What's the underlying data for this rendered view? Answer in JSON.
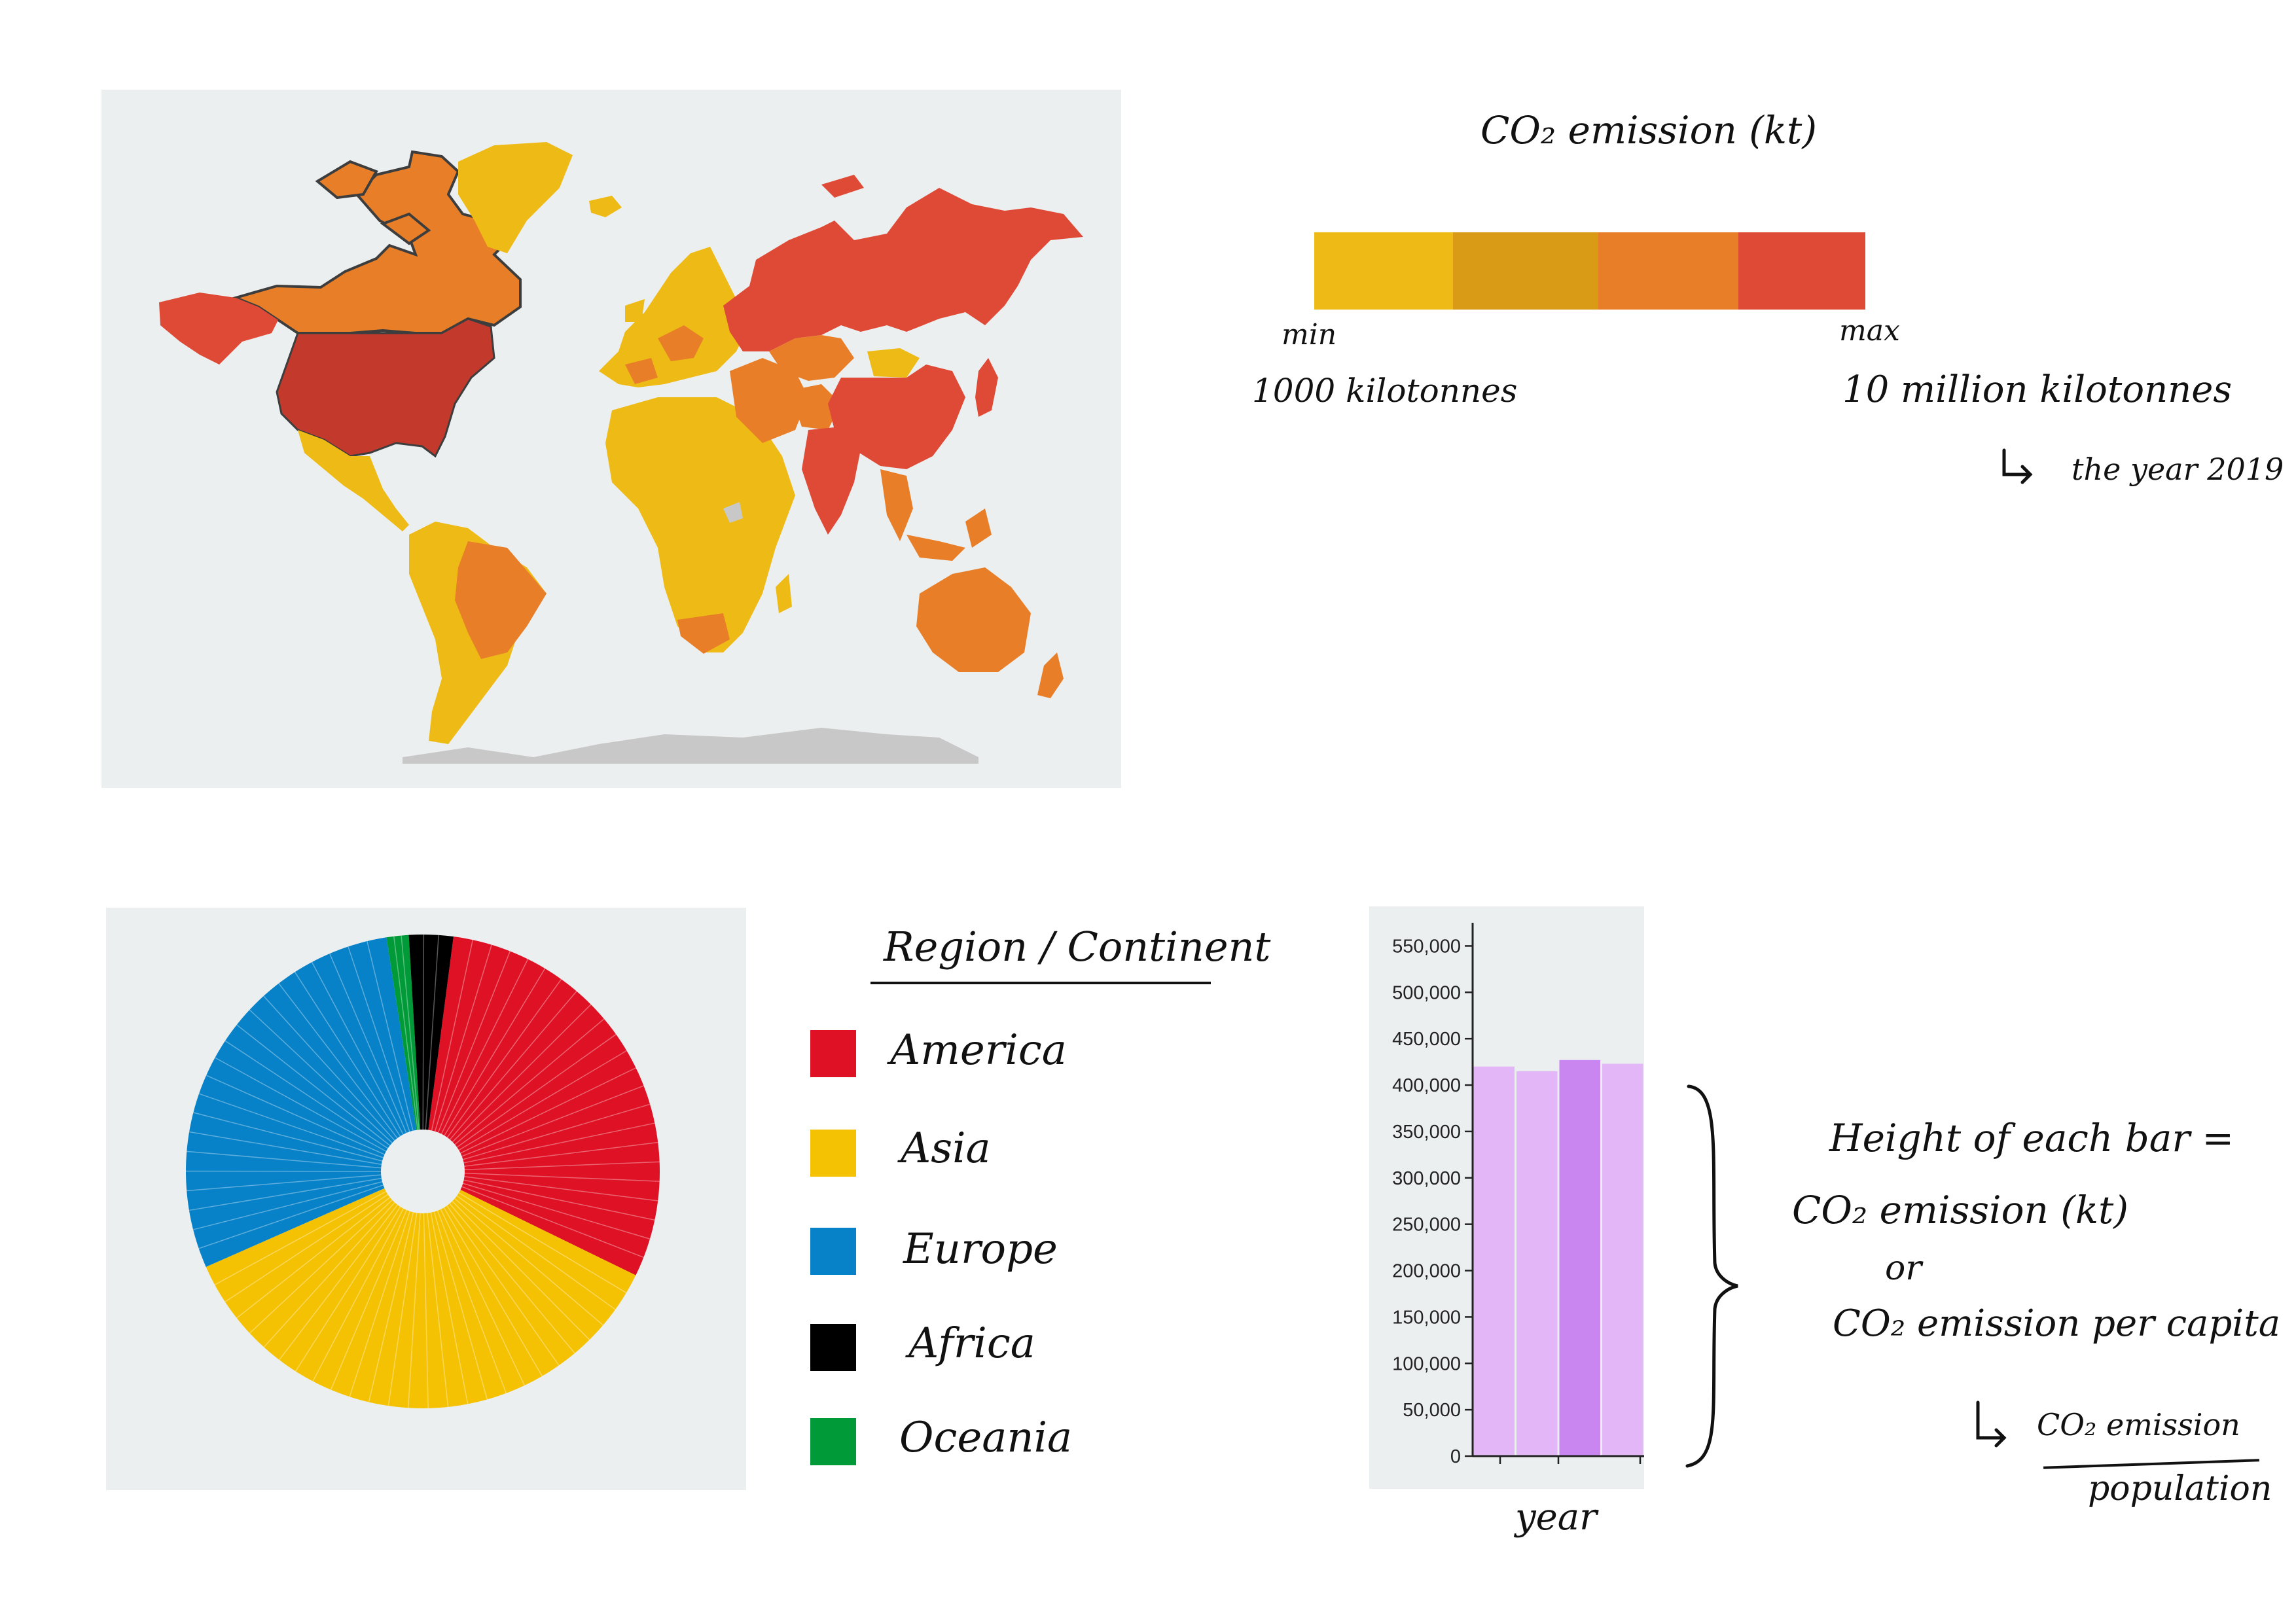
{
  "colors": {
    "scale": [
      "#eebb16",
      "#d99a15",
      "#e87f28",
      "#df4a36"
    ],
    "region": {
      "America": "#df1125",
      "Asia": "#f5c203",
      "Europe": "#0782c8",
      "Africa": "#000000",
      "Oceania": "#009a39"
    },
    "bar": "#e2b6f7",
    "bar_highlight": "#c986f0"
  },
  "scale_legend": {
    "title": "CO₂ emission (kt)",
    "min_label": "min",
    "min_value": "1000 kilotonnes",
    "max_label": "max",
    "max_value": "10 million kilotonnes",
    "note": "the year 2019"
  },
  "region_legend": {
    "title": "Region / Continent",
    "items": [
      "America",
      "Asia",
      "Europe",
      "Africa",
      "Oceania"
    ]
  },
  "bar_annotation": {
    "line1": "Height of each bar =",
    "line2": "CO₂ emission (kt)",
    "line3": "or",
    "line4": "CO₂ emission per capita",
    "numerator": "CO₂ emission",
    "denominator": "population"
  },
  "chart_data": [
    {
      "type": "pie",
      "variant": "donut",
      "series": [
        {
          "name": "America",
          "value": 30
        },
        {
          "name": "Asia",
          "value": 36
        },
        {
          "name": "Europe",
          "value": 29
        },
        {
          "name": "Africa",
          "value": 3
        },
        {
          "name": "Oceania",
          "value": 1.5
        }
      ]
    },
    {
      "type": "bar",
      "categories": [
        "",
        "",
        "",
        ""
      ],
      "values": [
        420000,
        415000,
        427000,
        423000
      ],
      "highlight_index": 2,
      "ylim": [
        0,
        575000
      ],
      "yticks": [
        0,
        50000,
        100000,
        150000,
        200000,
        250000,
        300000,
        350000,
        400000,
        450000,
        500000,
        550000
      ],
      "ytick_labels": [
        "0",
        "50,000",
        "100,000",
        "150,000",
        "200,000",
        "250,000",
        "300,000",
        "350,000",
        "400,000",
        "450,000",
        "500,000",
        "550,000"
      ],
      "xlabel": "year",
      "ylabel": ""
    }
  ]
}
